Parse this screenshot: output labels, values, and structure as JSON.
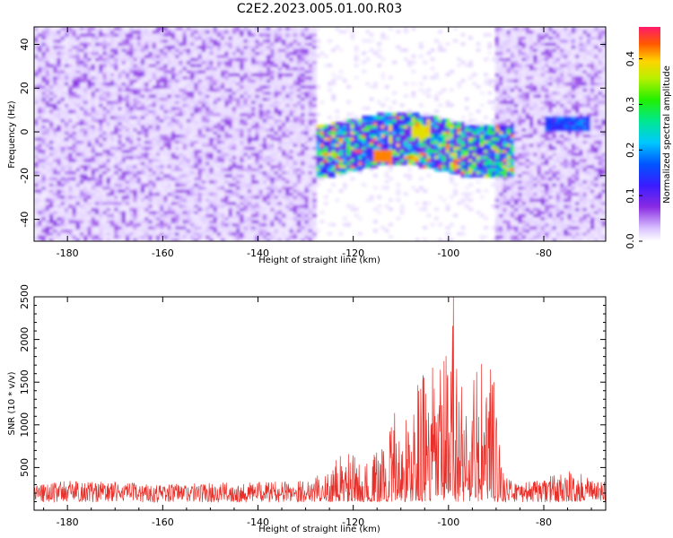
{
  "title": "C2E2.2023.005.01.00.R03",
  "chart_data": [
    {
      "type": "heatmap",
      "xlabel": "Height of straight line (km)",
      "ylabel": "Frequency (Hz)",
      "xlim": [
        -187,
        -67
      ],
      "ylim": [
        -50,
        48
      ],
      "x_ticks": [
        -180,
        -160,
        -140,
        -120,
        -100,
        -80
      ],
      "y_ticks": [
        -40,
        -20,
        0,
        20,
        40
      ],
      "colorbar": {
        "label": "Normalized spectral amplitude",
        "range": [
          0.0,
          0.47
        ],
        "ticks": [
          "0.0",
          "0.1",
          "0.2",
          "0.3",
          "0.4"
        ],
        "colormap": "rainbow (white → violet → blue → cyan → green → yellow → red → magenta)"
      },
      "features": [
        {
          "x_range": [
            -187,
            -128
          ],
          "frequency_range": [
            -50,
            48
          ],
          "amplitude": "0.0–0.1 (noise)"
        },
        {
          "x_range": [
            -128,
            -90
          ],
          "frequency_range": [
            -50,
            48
          ],
          "amplitude": "~0.0 (sparse)"
        },
        {
          "x_range": [
            -90,
            -67
          ],
          "frequency_range": [
            -50,
            48
          ],
          "amplitude": "0.0–0.1 (noise)"
        },
        {
          "x_range": [
            -128,
            -86
          ],
          "frequency_range": [
            -20,
            6
          ],
          "amplitude": "0.1–0.47 (signal band)"
        },
        {
          "x_range": [
            -80,
            -70
          ],
          "frequency_range": [
            1,
            7
          ],
          "amplitude": "0.1–0.25"
        }
      ]
    },
    {
      "type": "line",
      "xlabel": "Height of straight line (km)",
      "ylabel": "SNR (10 * v/v)",
      "xlim": [
        -187,
        -67
      ],
      "ylim": [
        0,
        2500
      ],
      "x_ticks": [
        -180,
        -160,
        -140,
        -120,
        -100,
        -80
      ],
      "y_ticks": [
        500,
        1000,
        1500,
        2000,
        2500
      ],
      "series": [
        {
          "color": "#e8302a",
          "envelope_x": [
            -187,
            -180,
            -170,
            -160,
            -150,
            -140,
            -130,
            -125,
            -122,
            -120,
            -118,
            -115,
            -112,
            -110,
            -108,
            -106,
            -104,
            -102,
            -100,
            -99,
            -98,
            -96,
            -94,
            -92,
            -91,
            -90,
            -88,
            -85,
            -80,
            -75,
            -70,
            -67
          ],
          "envelope_max": [
            280,
            320,
            300,
            280,
            290,
            300,
            320,
            450,
            750,
            650,
            500,
            700,
            1130,
            1250,
            1100,
            1700,
            1650,
            1760,
            1950,
            2500,
            1850,
            1500,
            1760,
            1860,
            1800,
            1400,
            350,
            300,
            320,
            500,
            320,
            300
          ],
          "baseline": 180
        }
      ]
    }
  ]
}
